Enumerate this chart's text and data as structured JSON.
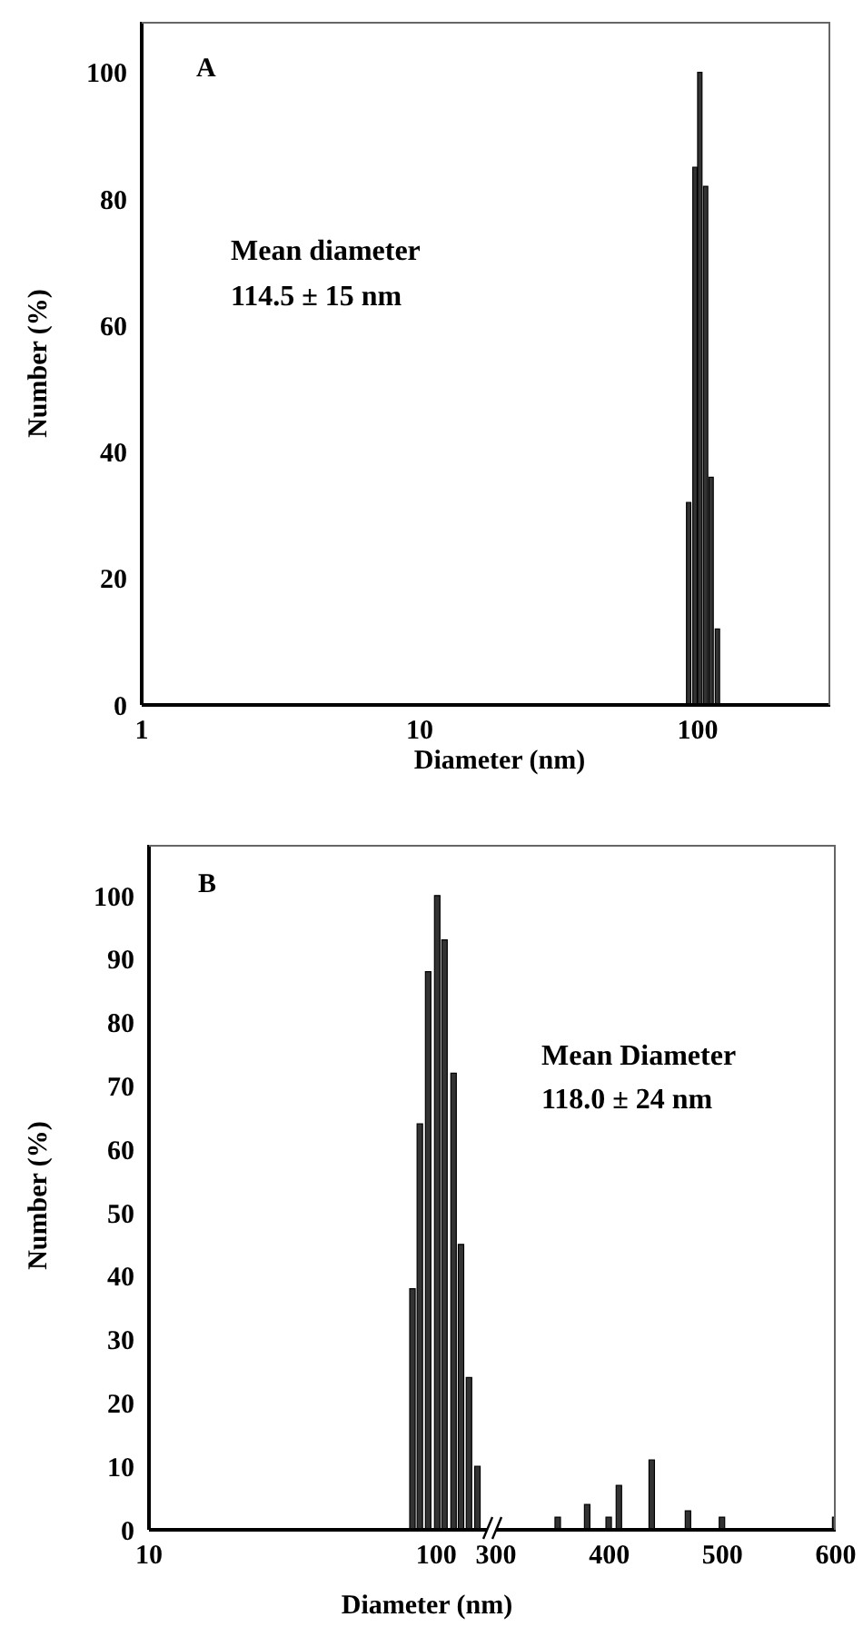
{
  "chart_data": [
    {
      "type": "bar",
      "annotations": [
        "A",
        "Mean diameter",
        "114.5 ± 15 nm"
      ],
      "xlabel": "Diameter (nm)",
      "ylabel": "Number (%)",
      "x": [
        93,
        98,
        102,
        107,
        112,
        118
      ],
      "values": [
        32,
        85,
        100,
        82,
        36,
        12
      ],
      "color": "#333333",
      "log": "x",
      "xlim": [
        1,
        300
      ],
      "xticks": [
        1,
        10,
        100
      ],
      "ylim": [
        0,
        108
      ],
      "yticks": [
        0,
        20,
        40,
        60,
        80,
        100
      ]
    },
    {
      "type": "bar",
      "annotations": [
        "B",
        "Mean Diameter",
        "118.0 ± 24 nm"
      ],
      "xlabel": "Diameter (nm)",
      "ylabel": "Number (%)",
      "x": [
        82,
        87,
        93,
        100,
        106,
        114,
        121,
        129,
        138
      ],
      "values": [
        38,
        64,
        88,
        100,
        93,
        72,
        45,
        24,
        10
      ],
      "color": "#333333",
      "log": "x",
      "xlim": [
        10,
        150
      ],
      "xticks": [
        10,
        100
      ],
      "ylim": [
        0,
        108
      ],
      "yticks": [
        0,
        10,
        20,
        30,
        40,
        50,
        60,
        70,
        80,
        90,
        100
      ]
    },
    {
      "type": "bar",
      "x": [
        355,
        381,
        400,
        409,
        438,
        470,
        500,
        600
      ],
      "values": [
        2,
        4,
        2,
        7,
        11,
        3,
        2,
        2
      ],
      "color": "#333333",
      "xlim": [
        300,
        600
      ],
      "xticks": [
        300,
        400,
        500,
        600
      ],
      "ylim": [
        0,
        108
      ],
      "tick_labels": "x"
    }
  ]
}
